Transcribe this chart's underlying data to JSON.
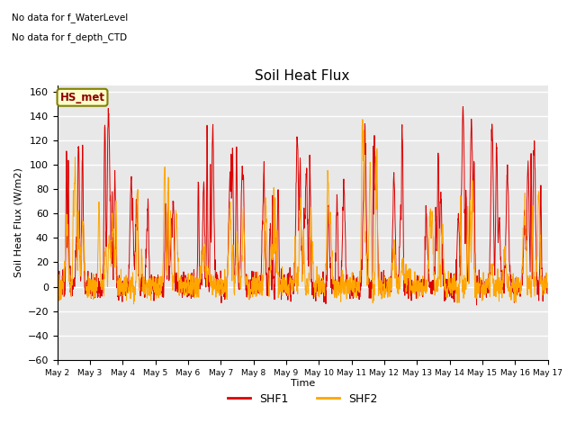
{
  "title": "Soil Heat Flux",
  "ylabel": "Soil Heat Flux (W/m2)",
  "xlabel": "Time",
  "ylim": [
    -60,
    165
  ],
  "yticks": [
    -60,
    -40,
    -20,
    0,
    20,
    40,
    60,
    80,
    100,
    120,
    140,
    160
  ],
  "background_color": "#e8e8e8",
  "grid_color": "white",
  "shf1_color": "#dd0000",
  "shf2_color": "#ffa500",
  "text_annotations": [
    "No data for f_WaterLevel",
    "No data for f_depth_CTD"
  ],
  "hs_met_label": "HS_met",
  "legend_labels": [
    "SHF1",
    "SHF2"
  ],
  "x_tick_labels": [
    "May 2",
    "May 3",
    "May 4",
    "May 5",
    "May 6",
    "May 7",
    "May 8",
    "May 9",
    "May 10",
    "May 11",
    "May 12",
    "May 13",
    "May 14",
    "May 15",
    "May 16",
    "May 17"
  ]
}
